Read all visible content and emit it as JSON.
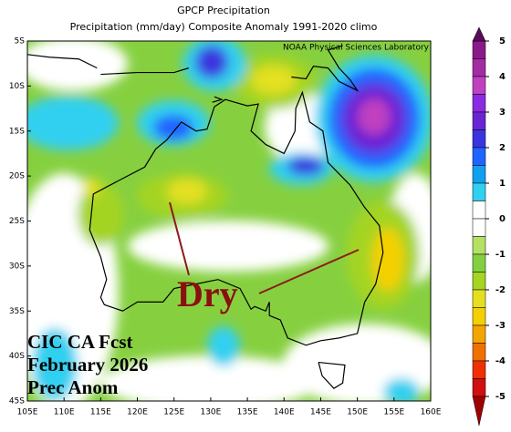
{
  "chart_data": {
    "type": "map",
    "title": "GPCP Precipitation",
    "subtitle": "Precipitation (mm/day) Composite Anomaly 1991-2020 climo",
    "credit": "NOAA Physical Sciences Laboratory",
    "annotations": [
      "Dry",
      "CIC CA Fcst",
      "February 2026",
      "Prec Anom"
    ],
    "xlim": [
      105,
      160
    ],
    "ylim": [
      -45,
      -5
    ],
    "xticks": [
      {
        "value": 105,
        "label": "105E"
      },
      {
        "value": 110,
        "label": "110E"
      },
      {
        "value": 115,
        "label": "115E"
      },
      {
        "value": 120,
        "label": "120E"
      },
      {
        "value": 125,
        "label": "125E"
      },
      {
        "value": 130,
        "label": "130E"
      },
      {
        "value": 135,
        "label": "135E"
      },
      {
        "value": 140,
        "label": "140E"
      },
      {
        "value": 145,
        "label": "145E"
      },
      {
        "value": 150,
        "label": "150E"
      },
      {
        "value": 155,
        "label": "155E"
      },
      {
        "value": 160,
        "label": "160E"
      }
    ],
    "yticks": [
      {
        "value": -5,
        "label": "5S"
      },
      {
        "value": -10,
        "label": "10S"
      },
      {
        "value": -15,
        "label": "15S"
      },
      {
        "value": -20,
        "label": "20S"
      },
      {
        "value": -25,
        "label": "25S"
      },
      {
        "value": -30,
        "label": "30S"
      },
      {
        "value": -35,
        "label": "35S"
      },
      {
        "value": -40,
        "label": "40S"
      },
      {
        "value": -45,
        "label": "45S"
      }
    ],
    "colorbar": {
      "lim": [
        -5,
        5
      ],
      "ticks": [
        5,
        4,
        3,
        2,
        1,
        0,
        -1,
        -2,
        -3,
        -4,
        -5
      ],
      "colors": [
        "#8a1a8a",
        "#a52aa5",
        "#c040c0",
        "#8a2be2",
        "#6a24d4",
        "#3a34e0",
        "#2064ff",
        "#10a0f0",
        "#30d0f0",
        "#ffffff",
        "#ffffff",
        "#b4e064",
        "#82d040",
        "#a4d424",
        "#e4e020",
        "#f4d000",
        "#f4a400",
        "#f07000",
        "#f03000",
        "#d01010"
      ],
      "over": "#5a0a5a",
      "under": "#a00000"
    }
  }
}
